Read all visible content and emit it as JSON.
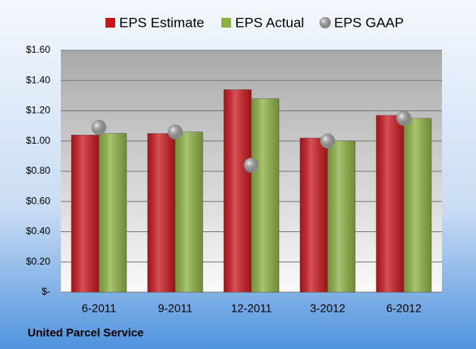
{
  "chart_data": {
    "type": "bar",
    "categories": [
      "6-2011",
      "9-2011",
      "12-2011",
      "3-2012",
      "6-2012"
    ],
    "series": [
      {
        "name": "EPS Estimate",
        "color": "#c8161e",
        "values": [
          1.04,
          1.05,
          1.34,
          1.02,
          1.17
        ]
      },
      {
        "name": "EPS Actual",
        "color": "#8db043",
        "values": [
          1.05,
          1.06,
          1.28,
          1.0,
          1.15
        ]
      },
      {
        "name": "EPS GAAP",
        "color": "#a8a8a8",
        "marker": "circle",
        "values": [
          1.09,
          1.06,
          0.84,
          1.0,
          1.15
        ]
      }
    ],
    "ylim": [
      0,
      1.6
    ],
    "yticks": [
      {
        "value": 0,
        "label": "$-"
      },
      {
        "value": 0.2,
        "label": "$0.20"
      },
      {
        "value": 0.4,
        "label": "$0.40"
      },
      {
        "value": 0.6,
        "label": "$0.60"
      },
      {
        "value": 0.8,
        "label": "$0.80"
      },
      {
        "value": 1.0,
        "label": "$1.00"
      },
      {
        "value": 1.2,
        "label": "$1.20"
      },
      {
        "value": 1.4,
        "label": "$1.40"
      },
      {
        "value": 1.6,
        "label": "$1.60"
      }
    ],
    "grid": true,
    "legend": "top",
    "footer": "United Parcel Service"
  }
}
